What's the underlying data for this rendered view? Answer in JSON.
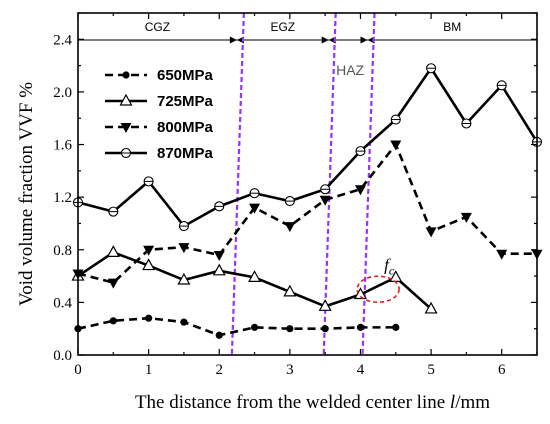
{
  "chart_data": {
    "type": "line",
    "xlabel_prefix": "The distance from the welded center line ",
    "xlabel_var": "l",
    "xlabel_suffix": "/mm",
    "ylabel": "Void volume fraction VVF  %",
    "xlim": [
      0,
      6.5
    ],
    "ylim": [
      0,
      2.6
    ],
    "xticks": [
      0,
      1,
      2,
      3,
      4,
      5,
      6
    ],
    "yticks": [
      0.0,
      0.4,
      0.8,
      1.2,
      1.6,
      2.0,
      2.4
    ],
    "legend_position": "top-left",
    "zones": [
      {
        "label": "CGZ",
        "from": 0,
        "to": 2.25
      },
      {
        "label": "EGZ",
        "from": 2.25,
        "to": 3.55
      },
      {
        "label": "BM",
        "from": 4.1,
        "to": 6.5
      }
    ],
    "boundaries": [
      2.25,
      3.55,
      4.1
    ],
    "haz_label": "HAZ",
    "annotation": {
      "text": "f",
      "subscript": "c",
      "x": 4.25,
      "y": 0.52
    },
    "series": [
      {
        "name": "650MPa",
        "style": "dash",
        "marker": "dot",
        "x": [
          0,
          0.5,
          1,
          1.5,
          2,
          2.5,
          3,
          3.5,
          4,
          4.5
        ],
        "y": [
          0.2,
          0.26,
          0.28,
          0.25,
          0.15,
          0.21,
          0.2,
          0.2,
          0.21,
          0.21
        ]
      },
      {
        "name": "725MPa",
        "style": "solid",
        "marker": "triangle",
        "x": [
          0,
          0.5,
          1,
          1.5,
          2,
          2.5,
          3,
          3.5,
          4,
          4.5,
          5
        ],
        "y": [
          0.6,
          0.78,
          0.68,
          0.57,
          0.64,
          0.59,
          0.48,
          0.37,
          0.46,
          0.59,
          0.35
        ]
      },
      {
        "name": "800MPa",
        "style": "dash",
        "marker": "down-triangle",
        "x": [
          0,
          0.5,
          1,
          1.5,
          2,
          2.5,
          3,
          3.5,
          4,
          4.5,
          5,
          5.5,
          6,
          6.5
        ],
        "y": [
          0.62,
          0.55,
          0.8,
          0.82,
          0.76,
          1.12,
          0.98,
          1.18,
          1.26,
          1.6,
          0.94,
          1.05,
          0.77,
          0.77
        ]
      },
      {
        "name": "870MPa",
        "style": "solid",
        "marker": "circle",
        "x": [
          0,
          0.5,
          1,
          1.5,
          2,
          2.5,
          3,
          3.5,
          4,
          4.5,
          5,
          5.5,
          6,
          6.5
        ],
        "y": [
          1.16,
          1.09,
          1.32,
          0.98,
          1.13,
          1.23,
          1.17,
          1.26,
          1.55,
          1.79,
          2.18,
          1.76,
          2.05,
          1.62
        ]
      }
    ]
  }
}
